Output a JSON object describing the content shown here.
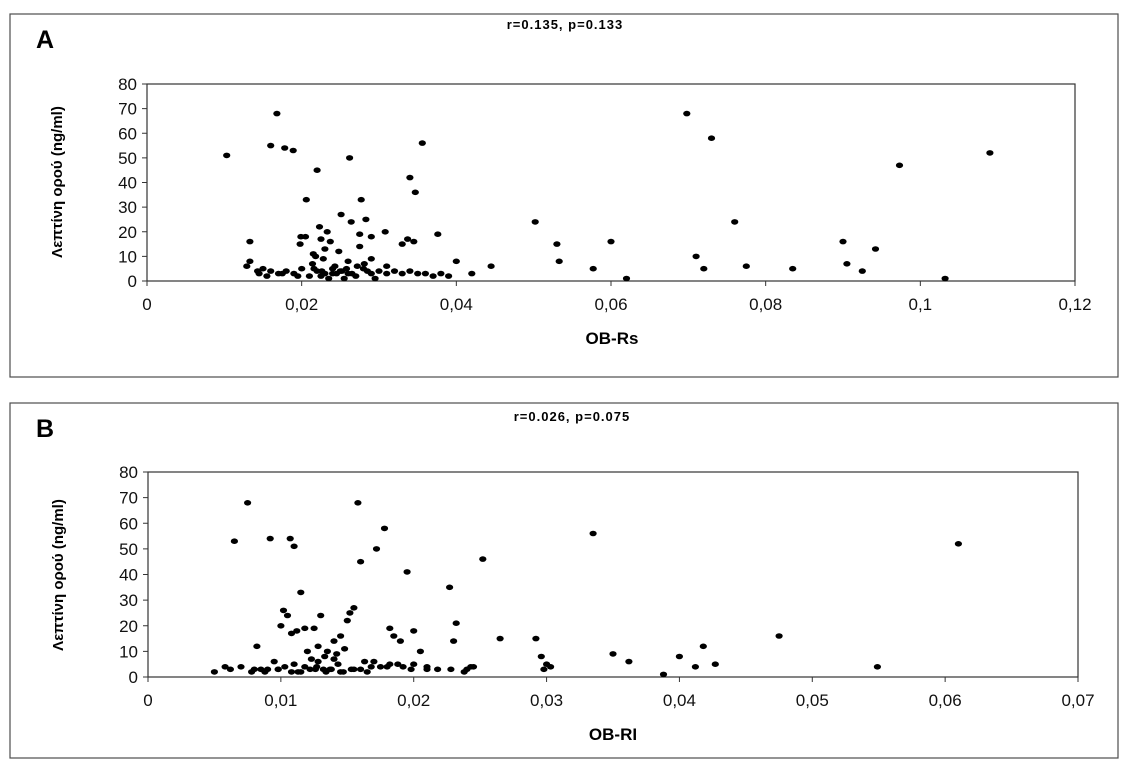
{
  "chart_data": [
    {
      "type": "scatter",
      "panel_label": "A",
      "title": "r=0.135, p=0.133",
      "xlabel": "OB-Rs",
      "ylabel": "Λεπτίνη ορού (ng/ml)",
      "xlim": [
        0,
        0.12
      ],
      "ylim": [
        0,
        80
      ],
      "x_ticks": [
        0,
        0.02,
        0.04,
        0.06,
        0.08,
        0.1,
        0.12
      ],
      "x_tick_labels": [
        "0",
        "0,02",
        "0,04",
        "0,06",
        "0,08",
        "0,1",
        "0,12"
      ],
      "y_ticks": [
        0,
        10,
        20,
        30,
        40,
        50,
        60,
        70,
        80
      ],
      "y_tick_labels": [
        "0",
        "10",
        "20",
        "30",
        "40",
        "50",
        "60",
        "70",
        "80"
      ],
      "grid": false,
      "legend": "none",
      "series": [
        {
          "x": [
            0.0103,
            0.0133,
            0.0129,
            0.0133,
            0.0143,
            0.016,
            0.0168,
            0.0178,
            0.0189,
            0.0199,
            0.0206,
            0.022,
            0.0262,
            0.0277,
            0.0251,
            0.0356,
            0.034,
            0.0347,
            0.029,
            0.0283,
            0.0308,
            0.0337,
            0.0376,
            0.0223,
            0.0233,
            0.0264,
            0.0275,
            0.023,
            0.0205,
            0.0248,
            0.0198,
            0.0218,
            0.0228,
            0.0214,
            0.0243,
            0.026,
            0.029,
            0.031,
            0.033,
            0.0345,
            0.0216,
            0.0226,
            0.024,
            0.0258,
            0.0281,
            0.0275,
            0.04,
            0.0445,
            0.042,
            0.015,
            0.016,
            0.017,
            0.018,
            0.019,
            0.02,
            0.021,
            0.022,
            0.023,
            0.024,
            0.025,
            0.026,
            0.027,
            0.028,
            0.029,
            0.03,
            0.031,
            0.032,
            0.033,
            0.034,
            0.035,
            0.036,
            0.037,
            0.038,
            0.039,
            0.0155,
            0.0175,
            0.0195,
            0.0225,
            0.0235,
            0.0245,
            0.0255,
            0.0265,
            0.0285,
            0.0295,
            0.0145,
            0.0225,
            0.0215,
            0.0237,
            0.0252,
            0.0272,
            0.0698,
            0.073,
            0.076,
            0.0973,
            0.109,
            0.0502,
            0.053,
            0.0533,
            0.0577,
            0.06,
            0.062,
            0.071,
            0.072,
            0.0775,
            0.0835,
            0.09,
            0.0905,
            0.0925,
            0.0942,
            0.1032
          ],
          "y": [
            51,
            16,
            6,
            8,
            4,
            55,
            68,
            54,
            53,
            18,
            33,
            45,
            50,
            33,
            27,
            56,
            42,
            36,
            18,
            25,
            20,
            17,
            19,
            22,
            20,
            24,
            19,
            13,
            18,
            12,
            15,
            10,
            9,
            7,
            6,
            8,
            9,
            6,
            15,
            16,
            5,
            4,
            3,
            5,
            7,
            14,
            8,
            6,
            3,
            5,
            4,
            3,
            4,
            3,
            5,
            2,
            4,
            3,
            5,
            4,
            3,
            2,
            5,
            3,
            4,
            3,
            4,
            3,
            4,
            3,
            3,
            2,
            3,
            2,
            2,
            3,
            2,
            2,
            1,
            3,
            1,
            3,
            4,
            1,
            3,
            17,
            11,
            16,
            4,
            6,
            68,
            58,
            24,
            47,
            52,
            24,
            15,
            8,
            5,
            16,
            1,
            10,
            5,
            6,
            5,
            16,
            7,
            4,
            13,
            1
          ]
        }
      ]
    },
    {
      "type": "scatter",
      "panel_label": "B",
      "title": "r=0.026, p=0.075",
      "xlabel": "OB-RI",
      "ylabel": "Λεπτίνη ορού (ng/ml)",
      "xlim": [
        0,
        0.07
      ],
      "ylim": [
        0,
        80
      ],
      "x_ticks": [
        0,
        0.01,
        0.02,
        0.03,
        0.04,
        0.05,
        0.06,
        0.07
      ],
      "x_tick_labels": [
        "0",
        "0,01",
        "0,02",
        "0,03",
        "0,04",
        "0,05",
        "0,06",
        "0,07"
      ],
      "y_ticks": [
        0,
        10,
        20,
        30,
        40,
        50,
        60,
        70,
        80
      ],
      "y_tick_labels": [
        "0",
        "10",
        "20",
        "30",
        "40",
        "50",
        "60",
        "70",
        "80"
      ],
      "grid": false,
      "legend": "none",
      "series": [
        {
          "x": [
            0.0065,
            0.0075,
            0.0092,
            0.0107,
            0.011,
            0.0158,
            0.0178,
            0.0172,
            0.016,
            0.0195,
            0.0227,
            0.0252,
            0.0335,
            0.061,
            0.0102,
            0.0108,
            0.0115,
            0.0118,
            0.0125,
            0.013,
            0.014,
            0.015,
            0.0152,
            0.0155,
            0.0145,
            0.012,
            0.0105,
            0.01,
            0.0112,
            0.0128,
            0.0135,
            0.0142,
            0.0148,
            0.0182,
            0.0185,
            0.019,
            0.02,
            0.0205,
            0.0232,
            0.023,
            0.0265,
            0.0292,
            0.0296,
            0.03,
            0.035,
            0.0362,
            0.04,
            0.0412,
            0.0418,
            0.0427,
            0.0475,
            0.0549,
            0.0388,
            0.005,
            0.0058,
            0.0062,
            0.007,
            0.0078,
            0.0082,
            0.0088,
            0.0095,
            0.0098,
            0.0103,
            0.0113,
            0.0122,
            0.0132,
            0.0138,
            0.0143,
            0.0153,
            0.0163,
            0.0168,
            0.0175,
            0.0188,
            0.0198,
            0.021,
            0.0218,
            0.0228,
            0.0238,
            0.0243,
            0.008,
            0.009,
            0.0108,
            0.0118,
            0.0126,
            0.0134,
            0.011,
            0.0128,
            0.014,
            0.016,
            0.018,
            0.02,
            0.017,
            0.0182,
            0.0192,
            0.024,
            0.0245,
            0.0298,
            0.0303,
            0.0085,
            0.0098,
            0.0115,
            0.0137,
            0.0145,
            0.0155,
            0.0165,
            0.0123,
            0.0127,
            0.0133,
            0.0147,
            0.021
          ],
          "y": [
            53,
            68,
            54,
            54,
            51,
            68,
            58,
            50,
            45,
            41,
            35,
            46,
            56,
            52,
            26,
            17,
            33,
            19,
            19,
            24,
            14,
            22,
            25,
            27,
            16,
            10,
            24,
            20,
            18,
            12,
            10,
            9,
            11,
            19,
            16,
            14,
            18,
            10,
            21,
            14,
            15,
            15,
            8,
            5,
            9,
            6,
            8,
            4,
            12,
            5,
            16,
            4,
            1,
            2,
            4,
            3,
            4,
            2,
            12,
            2,
            6,
            3,
            4,
            2,
            3,
            3,
            3,
            5,
            3,
            6,
            4,
            4,
            5,
            3,
            4,
            3,
            3,
            2,
            4,
            3,
            3,
            2,
            4,
            3,
            2,
            5,
            6,
            7,
            3,
            4,
            5,
            6,
            5,
            4,
            3,
            4,
            3,
            4,
            3,
            3,
            2,
            3,
            2,
            3,
            2,
            7,
            4,
            8,
            2,
            3
          ]
        }
      ]
    }
  ]
}
